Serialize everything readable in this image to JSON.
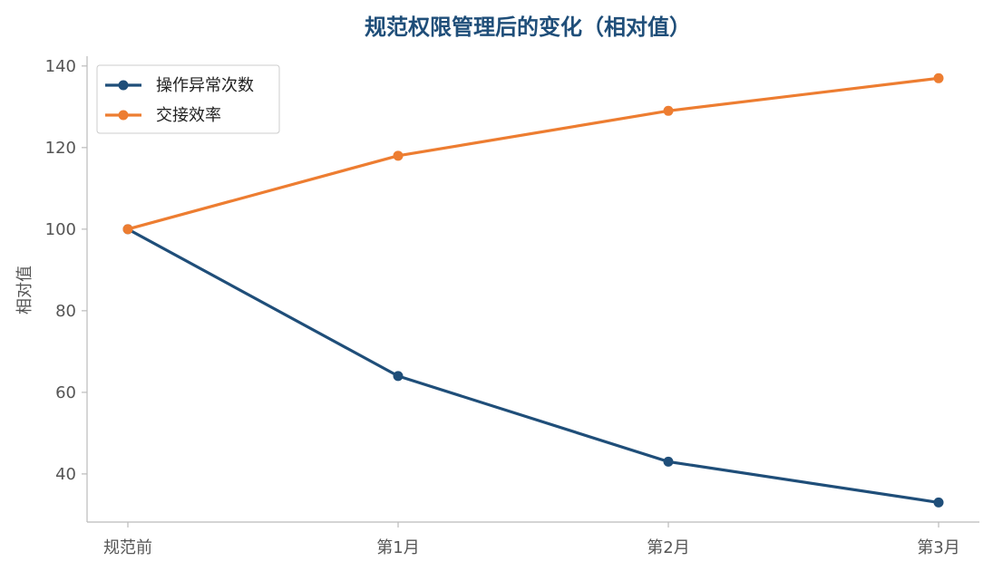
{
  "chart_data": {
    "type": "line",
    "title": "规范权限管理后的变化（相对值）",
    "xlabel": "",
    "ylabel": "相对值",
    "categories": [
      "规范前",
      "第1月",
      "第2月",
      "第3月"
    ],
    "series": [
      {
        "name": "操作异常次数",
        "values": [
          100,
          64,
          43,
          33
        ],
        "color": "#1f4e79"
      },
      {
        "name": "交接效率",
        "values": [
          100,
          118,
          129,
          137
        ],
        "color": "#ed7d31"
      }
    ],
    "ylim": [
      28.2,
      142.4
    ],
    "yticks": [
      40,
      60,
      80,
      100,
      120,
      140
    ],
    "grid": false,
    "legend": "top-left",
    "title_color": "#1f4e79"
  }
}
